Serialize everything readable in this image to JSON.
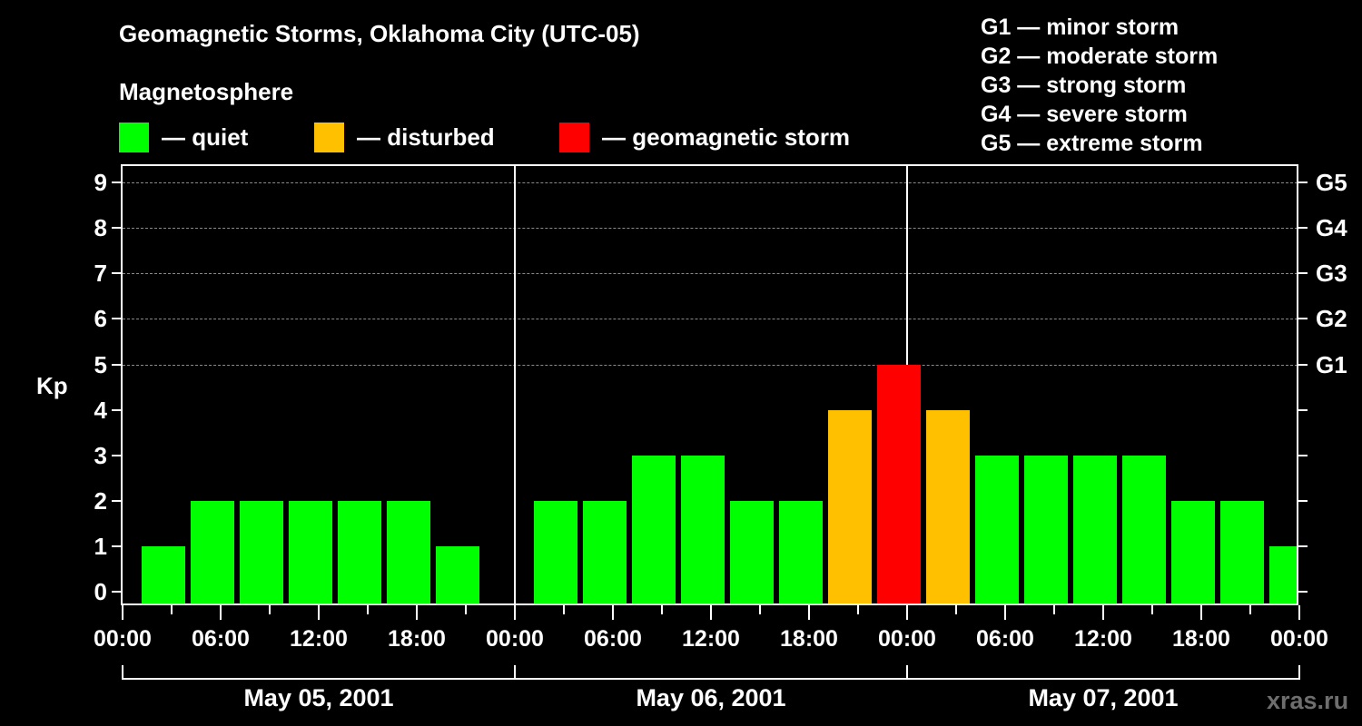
{
  "header": {
    "title": "Geomagnetic Storms, Oklahoma City (UTC-05)",
    "subtitle": "Magnetosphere"
  },
  "legend": [
    {
      "label": "— quiet",
      "color": "#00ff00"
    },
    {
      "label": "— disturbed",
      "color": "#ffc000"
    },
    {
      "label": "— geomagnetic storm",
      "color": "#ff0000"
    }
  ],
  "g_levels": [
    "G1 — minor storm",
    "G2 — moderate storm",
    "G3 — strong storm",
    "G4 — severe storm",
    "G5 — extreme storm"
  ],
  "axes": {
    "ylabel": "Kp",
    "yticks": [
      "0",
      "1",
      "2",
      "3",
      "4",
      "5",
      "6",
      "7",
      "8",
      "9"
    ],
    "right_ticks": [
      "G1",
      "G2",
      "G3",
      "G4",
      "G5"
    ],
    "xticks": [
      "00:00",
      "06:00",
      "12:00",
      "18:00",
      "00:00",
      "06:00",
      "12:00",
      "18:00",
      "00:00",
      "06:00",
      "12:00",
      "18:00",
      "00:00"
    ],
    "days": [
      "May 05, 2001",
      "May 06, 2001",
      "May 07, 2001"
    ]
  },
  "watermark": "xras.ru",
  "chart_data": {
    "type": "bar",
    "title": "Geomagnetic Storms, Oklahoma City (UTC-05)",
    "subtitle": "Magnetosphere",
    "xlabel": "",
    "ylabel": "Kp",
    "ylim": [
      0,
      9
    ],
    "grid": "horizontal dashed at Kp 5-9",
    "legend_position": "top",
    "categories": [
      "May 05 01:00",
      "May 05 04:00",
      "May 05 07:00",
      "May 05 10:00",
      "May 05 13:00",
      "May 05 16:00",
      "May 05 19:00",
      "May 06 01:00",
      "May 06 04:00",
      "May 06 07:00",
      "May 06 10:00",
      "May 06 13:00",
      "May 06 16:00",
      "May 06 19:00",
      "May 06 22:00",
      "May 07 01:00",
      "May 07 04:00",
      "May 07 07:00",
      "May 07 10:00",
      "May 07 13:00",
      "May 07 16:00",
      "May 07 19:00",
      "May 07 22:00"
    ],
    "values": [
      1,
      2,
      2,
      2,
      2,
      2,
      1,
      2,
      2,
      3,
      3,
      2,
      2,
      4,
      5,
      4,
      3,
      3,
      3,
      3,
      2,
      2,
      1
    ],
    "status": [
      "quiet",
      "quiet",
      "quiet",
      "quiet",
      "quiet",
      "quiet",
      "quiet",
      "quiet",
      "quiet",
      "quiet",
      "quiet",
      "quiet",
      "quiet",
      "disturbed",
      "storm",
      "disturbed",
      "quiet",
      "quiet",
      "quiet",
      "quiet",
      "quiet",
      "quiet",
      "quiet"
    ],
    "colors": {
      "quiet": "#00ff00",
      "disturbed": "#ffc000",
      "storm": "#ff0000"
    },
    "right_axis": {
      "G1": 5,
      "G2": 6,
      "G3": 7,
      "G4": 8,
      "G5": 9
    }
  }
}
